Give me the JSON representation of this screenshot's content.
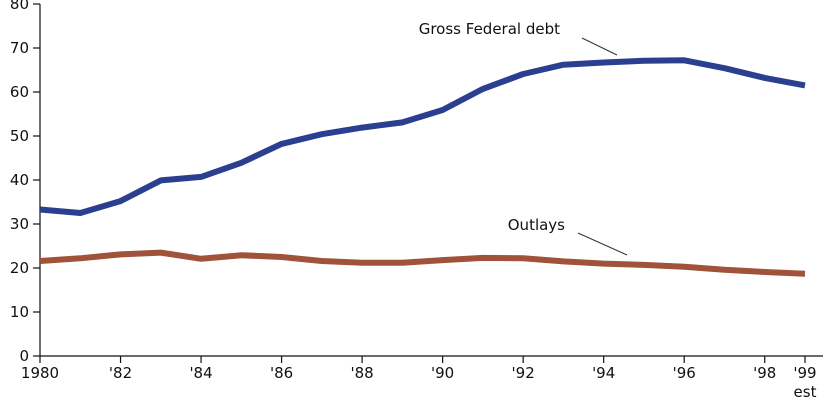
{
  "chart_data": {
    "type": "line",
    "title": "",
    "xlabel": "",
    "ylabel": "",
    "x": [
      1980,
      1981,
      1982,
      1983,
      1984,
      1985,
      1986,
      1987,
      1988,
      1989,
      1990,
      1991,
      1992,
      1993,
      1994,
      1995,
      1996,
      1997,
      1998,
      1999
    ],
    "x_tick_values": [
      1980,
      1982,
      1984,
      1986,
      1988,
      1990,
      1992,
      1994,
      1996,
      1998,
      1999
    ],
    "x_tick_labels": [
      "1980",
      "'82",
      "'84",
      "'86",
      "'88",
      "'90",
      "'92",
      "'94",
      "'96",
      "'98",
      "'99"
    ],
    "x_tick_sublabel": "est",
    "xlim": [
      1980,
      1999
    ],
    "ylim": [
      0,
      80
    ],
    "y_ticks": [
      0,
      10,
      20,
      30,
      40,
      50,
      60,
      70,
      80
    ],
    "y_tick_labels": [
      "0",
      "10",
      "20",
      "30",
      "40",
      "50",
      "60",
      "70",
      "80"
    ],
    "grid": false,
    "series": [
      {
        "name": "Gross Federal debt",
        "color": "#2a3f8f",
        "values": [
          33.3,
          32.5,
          35.2,
          39.9,
          40.7,
          43.9,
          48.2,
          50.4,
          51.9,
          53.1,
          55.9,
          60.7,
          64.1,
          66.2,
          66.7,
          67.1,
          67.2,
          65.4,
          63.2,
          61.5
        ]
      },
      {
        "name": "Outlays",
        "color": "#a0523a",
        "values": [
          21.6,
          22.2,
          23.1,
          23.5,
          22.1,
          22.9,
          22.5,
          21.6,
          21.2,
          21.2,
          21.8,
          22.3,
          22.2,
          21.5,
          21.0,
          20.7,
          20.3,
          19.6,
          19.1,
          18.7
        ]
      }
    ],
    "annotations": [
      {
        "series": 0,
        "text": "Gross Federal debt",
        "at_x": 1994.4,
        "at_y": 67.4
      },
      {
        "series": 1,
        "text": "Outlays",
        "at_x": 1993.6,
        "at_y": 22.5
      }
    ]
  }
}
